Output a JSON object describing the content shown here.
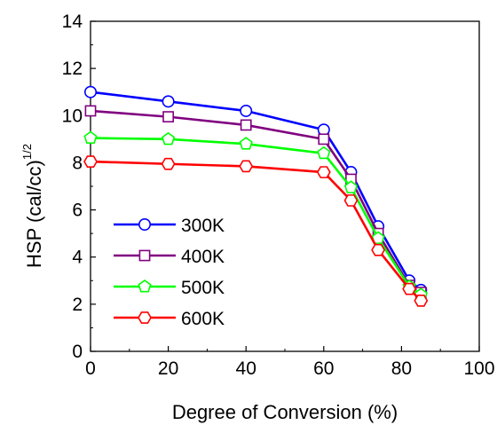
{
  "chart_data": {
    "type": "line",
    "title": "",
    "xlabel": "Degree of Conversion (%)",
    "ylabel_main": "HSP (cal/cc)",
    "ylabel_sup": "1/2",
    "xlim": [
      0,
      100
    ],
    "ylim": [
      0,
      14
    ],
    "xticks": [
      0,
      20,
      40,
      60,
      80,
      100
    ],
    "yticks": [
      0,
      2,
      4,
      6,
      8,
      10,
      12,
      14
    ],
    "xtick_labels": [
      "0",
      "20",
      "40",
      "60",
      "80",
      "100"
    ],
    "ytick_labels": [
      "0",
      "2",
      "4",
      "6",
      "8",
      "10",
      "12",
      "14"
    ],
    "grid": false,
    "legend_position": "lower-left",
    "x": [
      0,
      20,
      40,
      60,
      67,
      74,
      82,
      85
    ],
    "series": [
      {
        "name": "300K",
        "color": "#0000ff",
        "marker": "circle",
        "values": [
          11.0,
          10.6,
          10.2,
          9.4,
          7.6,
          5.3,
          3.0,
          2.6
        ]
      },
      {
        "name": "400K",
        "color": "#800080",
        "marker": "square",
        "values": [
          10.2,
          9.95,
          9.6,
          9.0,
          7.3,
          5.0,
          2.8,
          2.5
        ]
      },
      {
        "name": "500K",
        "color": "#00ff00",
        "marker": "pentagon",
        "values": [
          9.05,
          9.0,
          8.8,
          8.4,
          6.95,
          4.8,
          2.75,
          2.4
        ]
      },
      {
        "name": "600K",
        "color": "#ff0000",
        "marker": "hexagon",
        "values": [
          8.05,
          7.95,
          7.85,
          7.6,
          6.4,
          4.3,
          2.65,
          2.15
        ]
      }
    ]
  }
}
